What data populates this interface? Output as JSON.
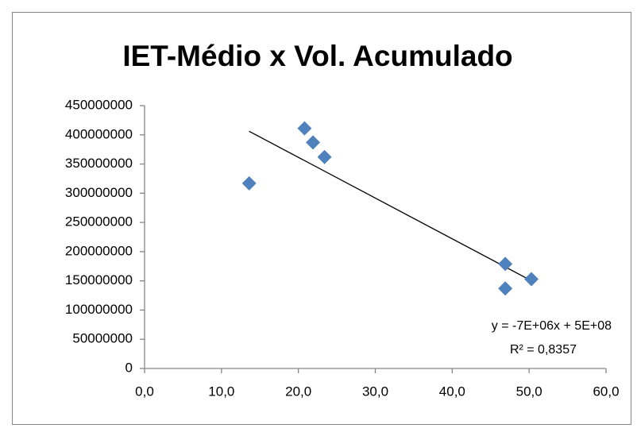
{
  "chart_data": {
    "type": "scatter",
    "title": "IET-Médio x Vol. Acumulado",
    "x": [
      13.6,
      20.8,
      21.9,
      23.4,
      46.9,
      46.9,
      50.3
    ],
    "values": [
      317000000,
      411000000,
      387000000,
      362000000,
      179000000,
      137000000,
      153000000
    ],
    "color": "#4f81bd",
    "trendline": true,
    "annotations": [
      "y = -7E+06x + 5E+08",
      "R² = 0,8357"
    ],
    "xlim": [
      0,
      60
    ],
    "xticks": [
      {
        "value": 0,
        "label": "0,0"
      },
      {
        "value": 10,
        "label": "10,0"
      },
      {
        "value": 20,
        "label": "20,0"
      },
      {
        "value": 30,
        "label": "30,0"
      },
      {
        "value": 40,
        "label": "40,0"
      },
      {
        "value": 50,
        "label": "50,0"
      },
      {
        "value": 60,
        "label": "60,0"
      }
    ],
    "ylim": [
      0,
      450000000
    ],
    "yticks": [
      0,
      50000000,
      100000000,
      150000000,
      200000000,
      250000000,
      300000000,
      350000000,
      400000000,
      450000000
    ],
    "grid": false
  }
}
